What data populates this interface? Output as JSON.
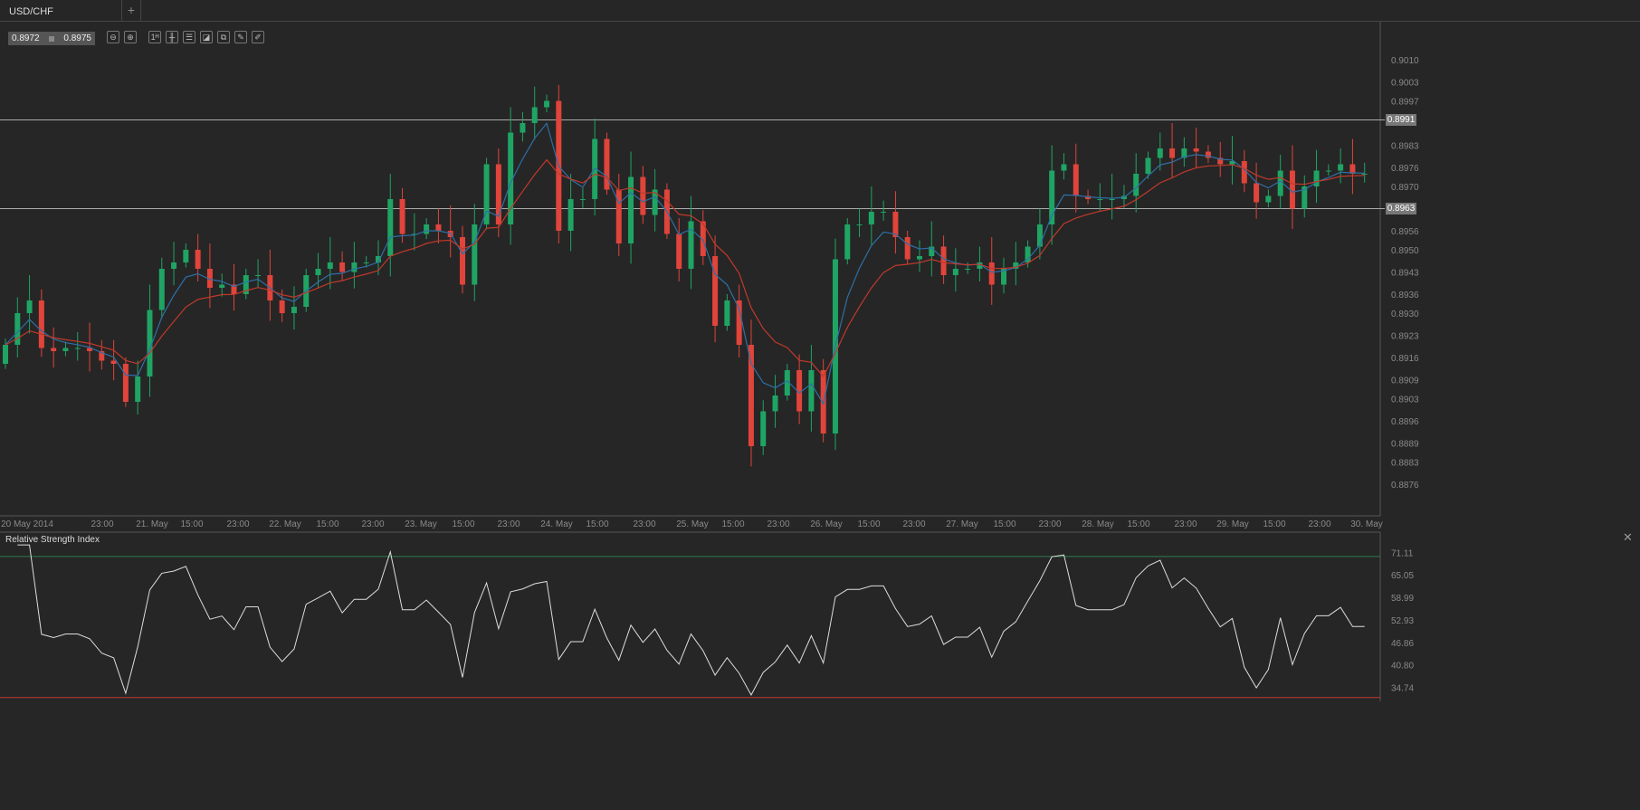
{
  "tab": {
    "label": "USD/CHF",
    "add_label": "+"
  },
  "quote": {
    "bid": "0.8972",
    "ask": "0.8975"
  },
  "toolbar": [
    {
      "name": "zoom-out-icon",
      "glyph": "⊖"
    },
    {
      "name": "zoom-in-icon",
      "glyph": "⊕"
    },
    {
      "name": "timeframe-1h-button",
      "glyph": "1ᴴ"
    },
    {
      "name": "chart-type-icon",
      "glyph": "╫"
    },
    {
      "name": "indicators-icon",
      "glyph": "☰"
    },
    {
      "name": "template-icon",
      "glyph": "◪"
    },
    {
      "name": "copy-icon",
      "glyph": "⧉"
    },
    {
      "name": "edit-icon",
      "glyph": "✎"
    },
    {
      "name": "draw-icon",
      "glyph": "✐"
    }
  ],
  "price_axis": {
    "ticks": [
      "0.9010",
      "0.9003",
      "0.8997",
      "0.8983",
      "0.8976",
      "0.8970",
      "0.8956",
      "0.8950",
      "0.8943",
      "0.8936",
      "0.8930",
      "0.8923",
      "0.8916",
      "0.8909",
      "0.8903",
      "0.8896",
      "0.8889",
      "0.8883",
      "0.8876"
    ],
    "range": [
      0.8866,
      0.9022
    ],
    "lines": [
      "0.8991",
      "0.8963"
    ]
  },
  "time_axis": [
    "20 May 2014",
    "23:00",
    "21. May",
    "15:00",
    "23:00",
    "22. May",
    "15:00",
    "23:00",
    "23. May",
    "15:00",
    "23:00",
    "24. May",
    "15:00",
    "23:00",
    "25. May",
    "15:00",
    "23:00",
    "26. May",
    "15:00",
    "23:00",
    "27. May",
    "15:00",
    "23:00",
    "28. May",
    "15:00",
    "23:00",
    "29. May",
    "15:00",
    "23:00",
    "30. May"
  ],
  "colors": {
    "up": "#1fa464",
    "down": "#e0443a",
    "ema_fast": "#2e6fa6",
    "ema_slow": "#c0392b",
    "rsi": "#dddddd",
    "upper": "#2e7d4a",
    "lower": "#c0392b"
  },
  "rsi": {
    "title": "Relative Strength Index",
    "ticks": [
      "71.11",
      "65.05",
      "58.99",
      "52.93",
      "46.86",
      "40.80",
      "34.74"
    ],
    "range": [
      31.7,
      74.1
    ],
    "upper": 70,
    "lower": 32
  },
  "chart_data": {
    "type": "candlestick",
    "symbol": "USD/CHF",
    "closes": [
      0.892,
      0.893,
      0.8934,
      0.8919,
      0.8918,
      0.8919,
      0.8919,
      0.8918,
      0.8915,
      0.8914,
      0.8902,
      0.891,
      0.8931,
      0.8944,
      0.8946,
      0.895,
      0.8944,
      0.8938,
      0.8939,
      0.8936,
      0.8942,
      0.8942,
      0.8934,
      0.893,
      0.8932,
      0.8942,
      0.8944,
      0.8946,
      0.8943,
      0.8946,
      0.8946,
      0.8948,
      0.8966,
      0.8955,
      0.8955,
      0.8958,
      0.8956,
      0.8954,
      0.8939,
      0.8958,
      0.8977,
      0.8958,
      0.8987,
      0.899,
      0.8995,
      0.8997,
      0.8956,
      0.8966,
      0.8966,
      0.8985,
      0.8969,
      0.8952,
      0.8973,
      0.8961,
      0.8969,
      0.8955,
      0.8944,
      0.8959,
      0.8948,
      0.8926,
      0.8934,
      0.892,
      0.8888,
      0.8899,
      0.8904,
      0.8912,
      0.8899,
      0.8912,
      0.8892,
      0.8947,
      0.8958,
      0.8958,
      0.8962,
      0.8962,
      0.8954,
      0.8947,
      0.8948,
      0.8951,
      0.8942,
      0.8944,
      0.8944,
      0.8946,
      0.8939,
      0.8944,
      0.8946,
      0.8951,
      0.8958,
      0.8975,
      0.8977,
      0.8967,
      0.8966,
      0.8966,
      0.8966,
      0.8967,
      0.8974,
      0.8979,
      0.8982,
      0.8979,
      0.8982,
      0.8981,
      0.8979,
      0.8977,
      0.8978,
      0.8971,
      0.8965,
      0.8967,
      0.8975,
      0.8963,
      0.897,
      0.8975,
      0.8975,
      0.8977,
      0.8974,
      0.8974
    ]
  }
}
